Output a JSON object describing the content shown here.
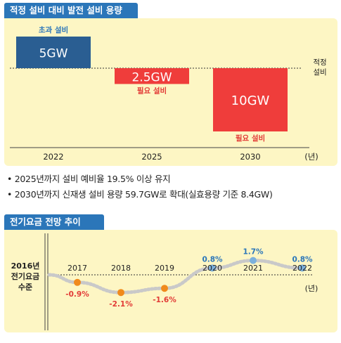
{
  "section1": {
    "title": "적정 설비 대비 발전 설비 용량",
    "reference_label_line1": "적정",
    "reference_label_line2": "설비",
    "unit_label": "(년)"
  },
  "section2": {
    "title": "전기요금 전망 추이",
    "base_label_line1": "2016년",
    "base_label_line2": "전기요금",
    "base_label_line3": "수준",
    "unit_label": "(년)"
  },
  "bullets": [
    "2025년까지 설비 예비율 19.5% 이상 유지",
    "2030년까지 신재생 설비 용량 59.7GW로 확대(실효용량 기준 8.4GW)"
  ],
  "chart_data": [
    {
      "type": "bar",
      "title": "적정 설비 대비 발전 설비 용량",
      "categories": [
        "2022",
        "2025",
        "2030"
      ],
      "values": [
        5,
        -2.5,
        -10
      ],
      "value_labels": [
        "5GW",
        "2.5GW",
        "10GW"
      ],
      "annotations": [
        "초과 설비",
        "필요 설비",
        "필요 설비"
      ],
      "baseline_label": "적정 설비",
      "xlabel": "(년)",
      "colors": {
        "surplus": "#2a5e92",
        "needed": "#ef3d3b",
        "needed_text": "#e23a36",
        "surplus_text": "#2b76b9"
      }
    },
    {
      "type": "line",
      "title": "전기요금 전망 추이",
      "x": [
        "2017",
        "2018",
        "2019",
        "2020",
        "2021",
        "2022"
      ],
      "values": [
        -0.9,
        -2.1,
        -1.6,
        0.8,
        1.7,
        0.8
      ],
      "value_labels": [
        "-0.9%",
        "-2.1%",
        "-1.6%",
        "0.8%",
        "1.7%",
        "0.8%"
      ],
      "baseline_label": "2016년 전기요금 수준",
      "xlabel": "(년)",
      "colors": {
        "negative": "#f08a1c",
        "negative_text": "#e23a36",
        "positive": "#7cb1dc",
        "positive_text": "#2b76b9",
        "line": "#c9c9c9"
      }
    }
  ]
}
